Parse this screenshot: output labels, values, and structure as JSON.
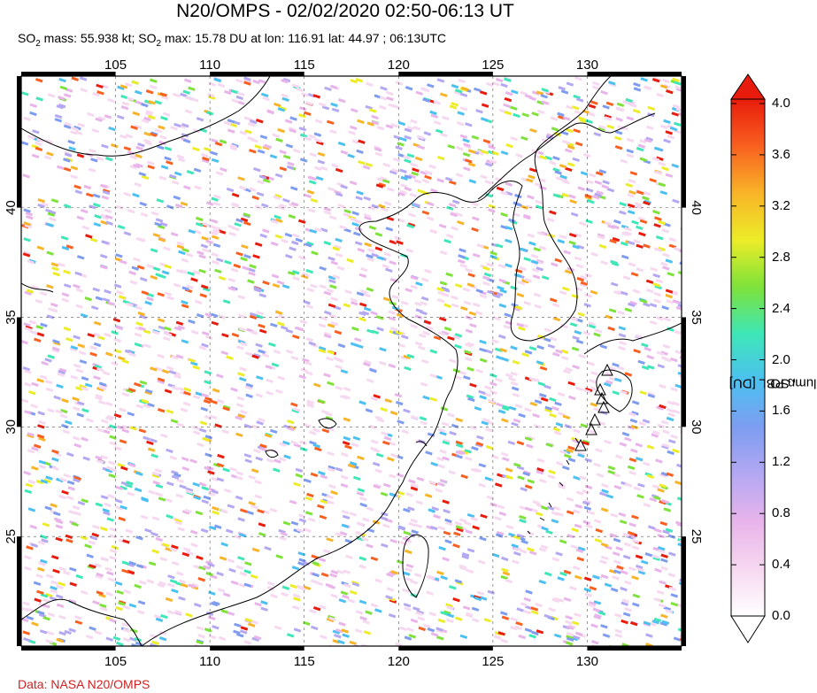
{
  "header": {
    "title": "N20/OMPS - 02/02/2020 02:50-06:13 UT",
    "subtitle_parts": [
      "SO",
      "2",
      " mass: 55.938 kt; SO",
      "2",
      " max: 15.78 DU at lon: 116.91 lat: 44.97 ; 06:13UTC"
    ]
  },
  "map": {
    "lon_range": [
      100,
      135
    ],
    "lat_range": [
      20,
      46
    ],
    "lon_ticks": [
      "105",
      "110",
      "115",
      "120",
      "125",
      "130"
    ],
    "lat_ticks": [
      "40",
      "35",
      "30",
      "25"
    ],
    "volcano_markers": 7
  },
  "colorbar": {
    "title_parts": [
      "SO",
      "2",
      " column PBL [DU]"
    ],
    "ticks": [
      "4.0",
      "3.6",
      "3.2",
      "2.8",
      "2.4",
      "2.0",
      "1.6",
      "1.2",
      "0.8",
      "0.4",
      "0.0"
    ],
    "min": 0.0,
    "max": 4.0,
    "colors": [
      "#ffffff",
      "#f6d8f0",
      "#e8b4ea",
      "#b4a8f2",
      "#7e9cf0",
      "#4cc0f0",
      "#3ee6b8",
      "#7ee23a",
      "#ecec28",
      "#f8b428",
      "#f86020",
      "#e81c0c"
    ]
  },
  "footer": {
    "credit": "Data: NASA N20/OMPS"
  }
}
